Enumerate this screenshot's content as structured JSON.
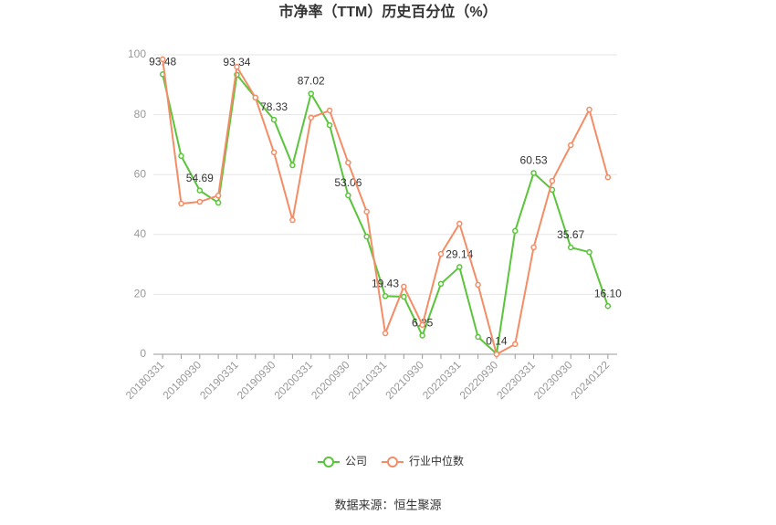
{
  "chart_data": {
    "type": "line",
    "title": "市净率（TTM）历史百分位（%）",
    "categories": [
      "20180331",
      null,
      "20180930",
      null,
      "20190331",
      null,
      "20190930",
      null,
      "20200331",
      null,
      "20200930",
      null,
      "20210331",
      null,
      "20210930",
      null,
      "20220331",
      null,
      "20220930",
      null,
      "20230331",
      null,
      "20230930",
      null,
      "20240122"
    ],
    "series": [
      {
        "name": "公司",
        "color": "#5ac43b",
        "values": [
          93.48,
          66.2,
          54.69,
          50.6,
          93.34,
          85.7,
          78.33,
          63.1,
          87.02,
          76.5,
          53.06,
          39.3,
          19.43,
          19.2,
          6.25,
          23.5,
          29.14,
          5.8,
          0.14,
          41.2,
          60.53,
          54.9,
          35.67,
          34.1,
          16.1
        ],
        "value_labels": [
          "93.48",
          null,
          "54.69",
          null,
          "93.34",
          null,
          "78.33",
          null,
          "87.02",
          null,
          "53.06",
          null,
          "19.43",
          null,
          "6.25",
          null,
          "29.14",
          null,
          "0.14",
          null,
          "60.53",
          null,
          "35.67",
          null,
          "16.10"
        ]
      },
      {
        "name": "行业中位数",
        "color": "#f48d66",
        "values": [
          98.5,
          50.3,
          50.9,
          53.0,
          96.0,
          85.7,
          67.4,
          44.8,
          79.0,
          81.4,
          64.0,
          47.6,
          7.0,
          22.6,
          9.8,
          33.5,
          43.6,
          23.2,
          0,
          3.4,
          35.7,
          57.9,
          69.8,
          81.7,
          59.1
        ]
      }
    ],
    "ylim": [
      0,
      100
    ],
    "yticks": [
      0,
      20,
      40,
      60,
      80,
      100
    ],
    "grid": true,
    "source": "数据来源：恒生聚源"
  }
}
